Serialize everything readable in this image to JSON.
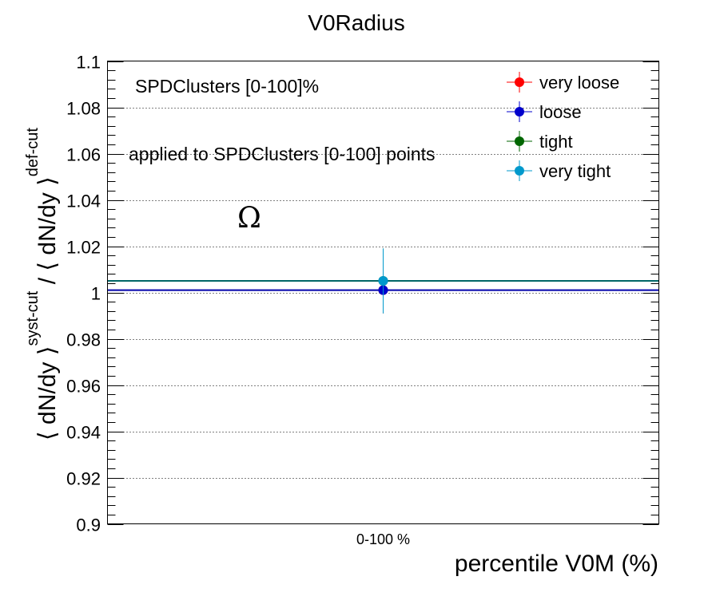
{
  "chart_data": {
    "type": "scatter",
    "title": "V0Radius",
    "xlabel": "percentile V0M (%)",
    "ylabel": "⟨ dN/dy ⟩",
    "ylabel_sup1": "syst-cut",
    "ylabel_mid": " / ⟨ dN/dy ⟩",
    "ylabel_sup2": "def-cut",
    "categories": [
      "0-100 %"
    ],
    "ylim": [
      0.9,
      1.1
    ],
    "yticks": [
      "0.9",
      "0.92",
      "0.94",
      "0.96",
      "0.98",
      "1",
      "1.02",
      "1.04",
      "1.06",
      "1.08",
      "1.1"
    ],
    "grid": true,
    "legend_position": "top-right",
    "annotations": {
      "selection": "SPDClusters [0-100]%",
      "applied": "applied to SPDClusters [0-100] points",
      "particle": "Ω"
    },
    "series": [
      {
        "name": "very loose",
        "color": "#ff0000",
        "values": [
          1.001
        ],
        "errors": [
          0.01
        ]
      },
      {
        "name": "loose",
        "color": "#0000cc",
        "values": [
          1.001
        ],
        "errors": [
          0.01
        ]
      },
      {
        "name": "tight",
        "color": "#006600",
        "values": [
          1.005
        ],
        "errors": [
          0.014
        ]
      },
      {
        "name": "very tight",
        "color": "#0099cc",
        "values": [
          1.005
        ],
        "errors": [
          0.014
        ]
      }
    ],
    "reference_lines": [
      {
        "value": 1.005,
        "color": "#006666"
      },
      {
        "value": 1.001,
        "color": "#0000aa"
      }
    ]
  }
}
